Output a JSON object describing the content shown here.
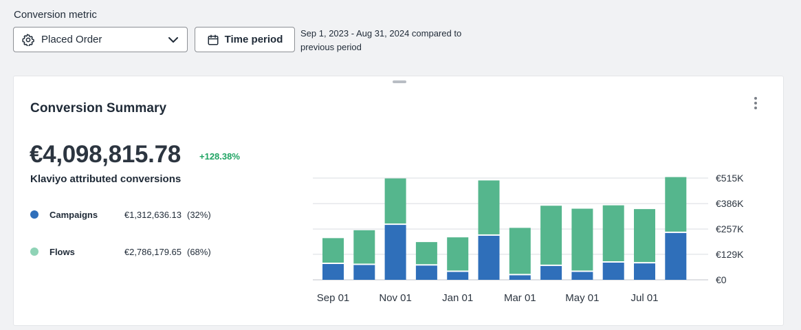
{
  "conversion_metric": {
    "label": "Conversion metric",
    "selected": "Placed Order"
  },
  "time_period": {
    "button_label": "Time period",
    "range_text_line1": "Sep 1, 2023 - Aug 31, 2024 compared to",
    "range_text_line2": "previous period"
  },
  "card": {
    "title": "Conversion Summary",
    "total_value": "€4,098,815.78",
    "change": "+128.38%",
    "subtitle": "Klaviyo attributed conversions",
    "legend": [
      {
        "name": "Campaigns",
        "amount": "€1,312,636.13",
        "percent": "(32%)",
        "color": "#2f6fba"
      },
      {
        "name": "Flows",
        "amount": "€2,786,179.65",
        "percent": "(68%)",
        "color": "#8fd3b6"
      }
    ]
  },
  "colors": {
    "campaigns": "#2f6fba",
    "flows": "#55b68d",
    "positive": "#1fa463"
  },
  "chart_data": {
    "type": "bar",
    "stacked": true,
    "categories": [
      "Sep",
      "Oct",
      "Nov",
      "Dec",
      "Jan",
      "Feb",
      "Mar",
      "Apr",
      "May",
      "Jun",
      "Jul",
      "Aug"
    ],
    "x_tick_labels": [
      "Sep 01",
      "Nov 01",
      "Jan 01",
      "Mar 01",
      "May 01",
      "Jul 01"
    ],
    "x_tick_categories": [
      "Sep",
      "Nov",
      "Jan",
      "Mar",
      "May",
      "Jul"
    ],
    "series": [
      {
        "name": "Campaigns",
        "values": [
          80,
          75,
          278,
          72,
          40,
          223,
          23,
          70,
          40,
          87,
          83,
          237
        ]
      },
      {
        "name": "Flows",
        "values": [
          131,
          176,
          235,
          119,
          175,
          280,
          240,
          305,
          320,
          290,
          275,
          283
        ]
      }
    ],
    "ylim": [
      0,
      515
    ],
    "y_ticks": [
      0,
      129,
      257,
      386,
      515
    ],
    "y_tick_labels": [
      "€0",
      "€129K",
      "€257K",
      "€386K",
      "€515K"
    ],
    "grid": true
  }
}
